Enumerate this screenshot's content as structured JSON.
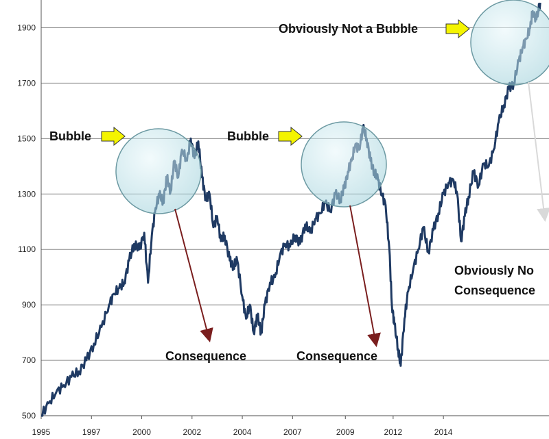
{
  "chart_data": {
    "type": "line",
    "title": "",
    "xlabel": "",
    "ylabel": "",
    "ylim": [
      500,
      2000
    ],
    "xlim": [
      1995.0,
      2015.2
    ],
    "grid": true,
    "y_ticks": [
      500,
      700,
      900,
      1100,
      1300,
      1500,
      1700,
      1900
    ],
    "x_ticks": [
      {
        "label": "1995",
        "x": 1995.0
      },
      {
        "label": "1997",
        "x": 1997.0
      },
      {
        "label": "2000",
        "x": 1999.0
      },
      {
        "label": "2002",
        "x": 2001.0
      },
      {
        "label": "2004",
        "x": 2003.0
      },
      {
        "label": "2007",
        "x": 2005.0
      },
      {
        "label": "2009",
        "x": 2007.1
      },
      {
        "label": "2012",
        "x": 2009.0
      },
      {
        "label": "2014",
        "x": 2011.0
      }
    ],
    "series": [
      {
        "color": "#1f3a63",
        "points": [
          [
            1995.0,
            500
          ],
          [
            1995.3,
            545
          ],
          [
            1995.6,
            585
          ],
          [
            1995.9,
            610
          ],
          [
            1996.2,
            640
          ],
          [
            1996.5,
            660
          ],
          [
            1996.8,
            700
          ],
          [
            1997.1,
            760
          ],
          [
            1997.4,
            820
          ],
          [
            1997.7,
            900
          ],
          [
            1997.9,
            940
          ],
          [
            1998.1,
            960
          ],
          [
            1998.3,
            980
          ],
          [
            1998.5,
            1060
          ],
          [
            1998.7,
            1120
          ],
          [
            1998.9,
            1100
          ],
          [
            1999.1,
            1160
          ],
          [
            1999.25,
            980
          ],
          [
            1999.4,
            1150
          ],
          [
            1999.55,
            1250
          ],
          [
            1999.7,
            1300
          ],
          [
            1999.85,
            1270
          ],
          [
            2000.0,
            1360
          ],
          [
            2000.15,
            1310
          ],
          [
            2000.3,
            1420
          ],
          [
            2000.45,
            1360
          ],
          [
            2000.6,
            1460
          ],
          [
            2000.8,
            1420
          ],
          [
            2000.95,
            1500
          ],
          [
            2001.1,
            1430
          ],
          [
            2001.25,
            1490
          ],
          [
            2001.4,
            1360
          ],
          [
            2001.55,
            1280
          ],
          [
            2001.7,
            1300
          ],
          [
            2001.85,
            1180
          ],
          [
            2002.0,
            1220
          ],
          [
            2002.15,
            1130
          ],
          [
            2002.3,
            1150
          ],
          [
            2002.5,
            1060
          ],
          [
            2002.65,
            1040
          ],
          [
            2002.8,
            1060
          ],
          [
            2003.0,
            930
          ],
          [
            2003.15,
            850
          ],
          [
            2003.3,
            900
          ],
          [
            2003.45,
            800
          ],
          [
            2003.6,
            860
          ],
          [
            2003.75,
            800
          ],
          [
            2003.9,
            900
          ],
          [
            2004.1,
            980
          ],
          [
            2004.3,
            1000
          ],
          [
            2004.5,
            1080
          ],
          [
            2004.7,
            1120
          ],
          [
            2004.9,
            1110
          ],
          [
            2005.1,
            1150
          ],
          [
            2005.3,
            1120
          ],
          [
            2005.5,
            1190
          ],
          [
            2005.7,
            1160
          ],
          [
            2005.9,
            1210
          ],
          [
            2006.1,
            1230
          ],
          [
            2006.3,
            1270
          ],
          [
            2006.5,
            1240
          ],
          [
            2006.7,
            1300
          ],
          [
            2006.9,
            1280
          ],
          [
            2007.05,
            1320
          ],
          [
            2007.2,
            1380
          ],
          [
            2007.35,
            1420
          ],
          [
            2007.5,
            1480
          ],
          [
            2007.65,
            1460
          ],
          [
            2007.8,
            1540
          ],
          [
            2007.95,
            1500
          ],
          [
            2008.1,
            1420
          ],
          [
            2008.25,
            1380
          ],
          [
            2008.4,
            1350
          ],
          [
            2008.55,
            1300
          ],
          [
            2008.7,
            1260
          ],
          [
            2008.85,
            1100
          ],
          [
            2008.95,
            900
          ],
          [
            2009.05,
            830
          ],
          [
            2009.2,
            740
          ],
          [
            2009.3,
            680
          ],
          [
            2009.45,
            850
          ],
          [
            2009.6,
            950
          ],
          [
            2009.8,
            1030
          ],
          [
            2010.0,
            1100
          ],
          [
            2010.2,
            1180
          ],
          [
            2010.4,
            1090
          ],
          [
            2010.6,
            1170
          ],
          [
            2010.8,
            1230
          ],
          [
            2011.0,
            1300
          ],
          [
            2011.2,
            1340
          ],
          [
            2011.4,
            1350
          ],
          [
            2011.55,
            1300
          ],
          [
            2011.7,
            1130
          ],
          [
            2011.85,
            1220
          ],
          [
            2012.0,
            1290
          ],
          [
            2012.2,
            1380
          ],
          [
            2012.4,
            1330
          ],
          [
            2012.6,
            1410
          ],
          [
            2012.8,
            1400
          ],
          [
            2013.0,
            1460
          ],
          [
            2013.2,
            1560
          ],
          [
            2013.4,
            1620
          ],
          [
            2013.6,
            1680
          ],
          [
            2013.8,
            1700
          ],
          [
            2014.0,
            1780
          ],
          [
            2014.15,
            1830
          ],
          [
            2014.3,
            1860
          ],
          [
            2014.45,
            1900
          ],
          [
            2014.55,
            1960
          ],
          [
            2014.7,
            1930
          ],
          [
            2014.85,
            1990
          ]
        ]
      }
    ]
  },
  "annotations": {
    "bubble1": "Bubble",
    "bubble2": "Bubble",
    "bubble3": "Obviously Not a Bubble",
    "consequence1": "Consequence",
    "consequence2": "Consequence",
    "no_consequence_line1": "Obviously No",
    "no_consequence_line2": "Consequence"
  },
  "colors": {
    "line": "#1f3a63",
    "arrow_dark": "#7a1e1e",
    "arrow_light": "#d9d9d9",
    "circle_fill": "#bfe3ea",
    "circle_stroke": "#6d9aa3",
    "yellow_arrow": "#f4f400",
    "grid": "#8a8a8a"
  }
}
